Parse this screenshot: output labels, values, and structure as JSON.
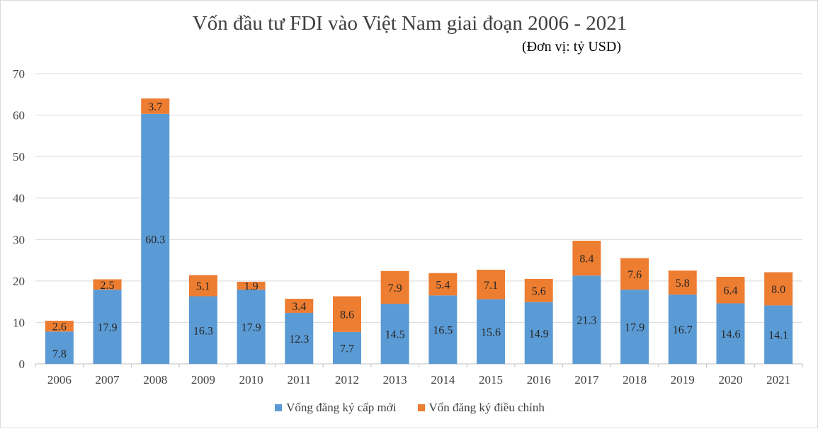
{
  "chart_data": {
    "type": "bar",
    "stacked": true,
    "title": "Vốn đầu tư FDI vào Việt Nam giai đoạn 2006 - 2021",
    "subtitle": "(Đơn vị: tỷ USD)",
    "categories": [
      "2006",
      "2007",
      "2008",
      "2009",
      "2010",
      "2011",
      "2012",
      "2013",
      "2014",
      "2015",
      "2016",
      "2017",
      "2018",
      "2019",
      "2020",
      "2021"
    ],
    "series": [
      {
        "name": "Vống đăng ký cấp mới",
        "color": "#5b9bd5",
        "values": [
          7.8,
          17.9,
          60.3,
          16.3,
          17.9,
          12.3,
          7.7,
          14.5,
          16.5,
          15.6,
          14.9,
          21.3,
          17.9,
          16.7,
          14.6,
          14.1
        ]
      },
      {
        "name": "Vốn đăng ký điều chỉnh",
        "color": "#ed7d31",
        "values": [
          2.6,
          2.5,
          3.7,
          5.1,
          1.9,
          3.4,
          8.6,
          7.9,
          5.4,
          7.1,
          5.6,
          8.4,
          7.6,
          5.8,
          6.4,
          8.0
        ]
      }
    ],
    "ylim": [
      0,
      70
    ],
    "yticks": [
      "0",
      "10",
      "20",
      "30",
      "40",
      "50",
      "60",
      "70"
    ],
    "grid": true,
    "legend_position": "bottom"
  }
}
